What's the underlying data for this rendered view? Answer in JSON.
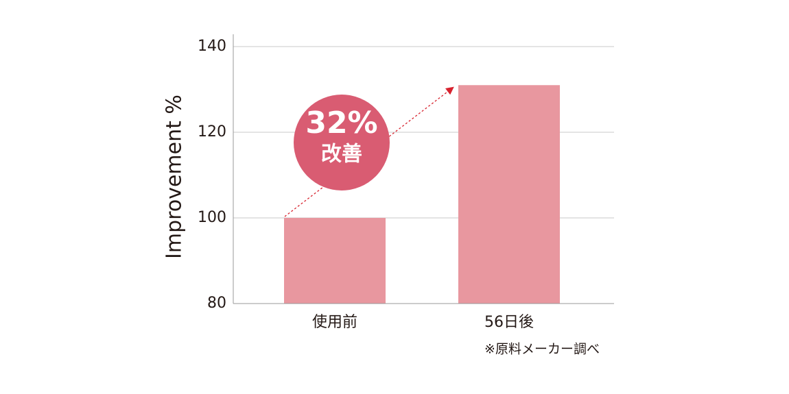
{
  "chart_data": {
    "type": "bar",
    "y_label": "Improvement %",
    "categories": [
      "使用前",
      "56日後"
    ],
    "values": [
      100,
      131
    ],
    "color": "#e8979f",
    "ylim": [
      80,
      140
    ],
    "yticks": [
      80,
      100,
      120,
      140
    ],
    "grid": true,
    "annotations": [
      "32%",
      "改善"
    ],
    "footnote": "※原料メーカー調べ"
  }
}
